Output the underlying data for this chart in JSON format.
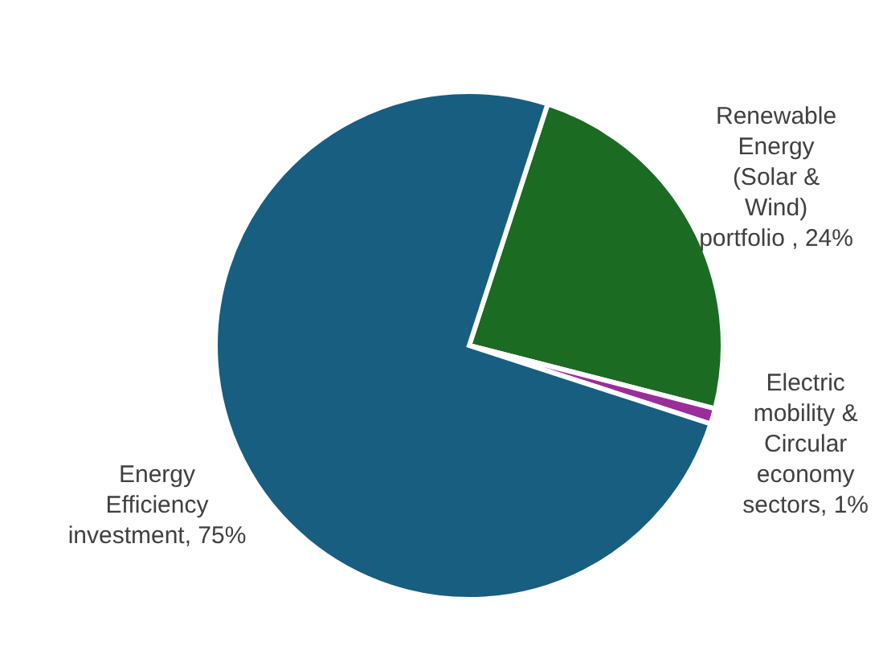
{
  "chart_data": {
    "type": "pie",
    "categories": [
      "Renewable Energy (Solar & Wind) portfolio",
      "Electric mobility & Circular economy sectors",
      "Energy Efficiency investment"
    ],
    "values": [
      24,
      1,
      75
    ],
    "value_labels": [
      "24%",
      "1%",
      "75%"
    ],
    "colors": [
      "#1b6b22",
      "#9b2d9b",
      "#175e81"
    ],
    "legend": false
  }
}
